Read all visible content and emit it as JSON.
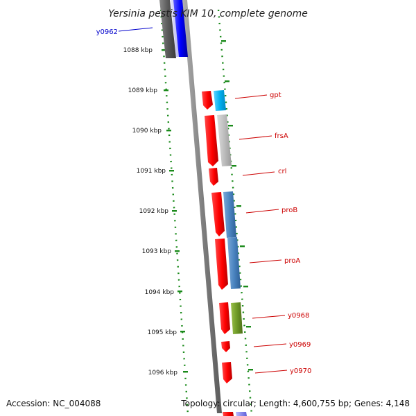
{
  "title": "Yersinia pestis KIM 10, complete genome",
  "accession": "Accession: NC_004088",
  "topology": "Topology: circular; Length: 4,600,755 bp; Genes: 4,148",
  "colors": {
    "backbone": "#808080",
    "tick": "#1a8a1a",
    "forward_gene": "#ff0000",
    "left_label": "#0000cc",
    "right_label": "#cc0000"
  },
  "kbp_labels": [
    "1088 kbp",
    "1089 kbp",
    "1090 kbp",
    "1091 kbp",
    "1092 kbp",
    "1093 kbp",
    "1094 kbp",
    "1095 kbp",
    "1096 kbp"
  ],
  "genes": [
    {
      "name": "y0962",
      "side": "left"
    },
    {
      "name": "gpt",
      "side": "right"
    },
    {
      "name": "frsA",
      "side": "right"
    },
    {
      "name": "crl",
      "side": "right"
    },
    {
      "name": "proB",
      "side": "right"
    },
    {
      "name": "proA",
      "side": "right"
    },
    {
      "name": "y0968",
      "side": "right"
    },
    {
      "name": "y0969",
      "side": "right"
    },
    {
      "name": "y0970",
      "side": "right"
    }
  ]
}
